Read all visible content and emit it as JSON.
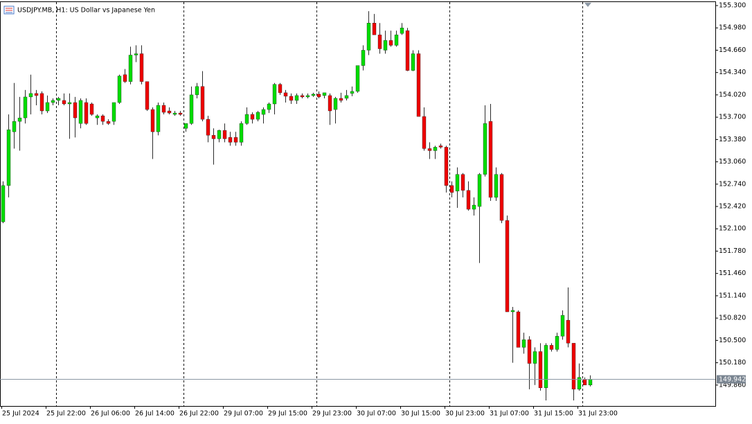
{
  "chart_data": {
    "type": "candlestick",
    "title": "USDJPY.MB, H1:  US Dollar vs Japanese Yen",
    "categories": [
      "25 Jul 2024",
      null,
      null,
      null,
      null,
      null,
      null,
      null,
      "25 Jul 22:00",
      null,
      null,
      null,
      null,
      null,
      null,
      null,
      "26 Jul 06:00",
      null,
      null,
      null,
      null,
      null,
      null,
      null,
      "26 Jul 14:00",
      null,
      null,
      null,
      null,
      null,
      null,
      null,
      "26 Jul 22:00",
      null,
      null,
      null,
      null,
      null,
      null,
      null,
      "29 Jul 07:00",
      null,
      null,
      null,
      null,
      null,
      null,
      null,
      "29 Jul 15:00",
      null,
      null,
      null,
      null,
      null,
      null,
      null,
      "29 Jul 23:00",
      null,
      null,
      null,
      null,
      null,
      null,
      null,
      "30 Jul 07:00",
      null,
      null,
      null,
      null,
      null,
      null,
      null,
      "30 Jul 15:00",
      null,
      null,
      null,
      null,
      null,
      null,
      null,
      "30 Jul 23:00",
      null,
      null,
      null,
      null,
      null,
      null,
      null,
      "31 Jul 07:00",
      null,
      null,
      null,
      null,
      null,
      null,
      null,
      "31 Jul 15:00",
      null,
      null,
      null,
      null,
      null,
      null,
      null,
      "31 Jul 23:00",
      null,
      null
    ],
    "open": [
      152.2,
      152.72,
      153.49,
      153.64,
      153.69,
      153.99,
      154.04,
      154.04,
      153.79,
      153.91,
      153.94,
      153.94,
      153.89,
      153.91,
      153.61,
      153.91,
      153.89,
      153.69,
      153.72,
      153.64,
      153.64,
      153.91,
      154.31,
      154.21,
      154.59,
      154.61,
      154.21,
      153.81,
      153.49,
      153.87,
      153.79,
      153.74,
      153.76,
      153.54,
      153.61,
      154.02,
      154.14,
      153.67,
      153.44,
      153.39,
      153.51,
      153.41,
      153.41,
      153.34,
      153.61,
      153.74,
      153.67,
      153.74,
      153.81,
      153.89,
      154.17,
      154.05,
      154.0,
      153.94,
      154.01,
      153.99,
      154.01,
      154.03,
      154.01,
      154.01,
      153.81,
      153.97,
      153.97,
      154.04,
      154.07,
      154.44,
      154.66,
      155.05,
      154.88,
      154.66,
      154.8,
      154.73,
      154.9,
      154.94,
      154.37,
      154.61,
      153.71,
      153.25,
      153.22,
      153.29,
      153.27,
      152.72,
      152.64,
      152.88,
      152.65,
      152.38,
      152.42,
      152.88,
      153.64,
      152.55,
      152.88,
      152.22,
      150.91,
      150.91,
      150.4,
      150.51,
      150.17,
      150.34,
      149.82,
      150.43,
      150.37,
      150.56,
      150.79,
      150.46,
      149.8,
      149.94,
      149.86
    ],
    "high": [
      152.78,
      153.74,
      154.19,
      153.99,
      154.09,
      154.31,
      154.09,
      154.07,
      154.01,
      153.97,
      153.99,
      154.04,
      154.04,
      153.99,
      153.97,
      153.97,
      153.91,
      153.74,
      153.74,
      153.67,
      153.91,
      154.31,
      154.39,
      154.71,
      154.73,
      154.73,
      154.21,
      153.84,
      153.91,
      153.91,
      153.84,
      153.79,
      153.79,
      153.61,
      154.14,
      154.19,
      154.36,
      153.72,
      153.54,
      153.52,
      153.61,
      153.49,
      153.49,
      153.64,
      153.84,
      153.77,
      153.79,
      153.84,
      153.91,
      154.19,
      154.19,
      154.09,
      154.04,
      154.04,
      154.04,
      154.04,
      154.05,
      154.07,
      154.05,
      154.04,
      153.99,
      154.05,
      154.09,
      154.14,
      154.44,
      154.73,
      155.22,
      155.18,
      155.05,
      154.94,
      154.94,
      154.94,
      155.05,
      154.98,
      154.66,
      154.66,
      153.84,
      153.34,
      153.29,
      153.32,
      153.29,
      152.78,
      152.98,
      152.9,
      152.78,
      152.55,
      152.9,
      153.87,
      153.89,
      152.98,
      152.9,
      152.29,
      150.98,
      150.93,
      150.61,
      150.56,
      150.4,
      150.46,
      150.46,
      150.46,
      150.61,
      150.93,
      151.26,
      150.46,
      150.17,
      149.97,
      150.0
    ],
    "low": [
      152.18,
      152.55,
      153.25,
      153.22,
      153.61,
      153.74,
      153.87,
      153.74,
      153.76,
      153.87,
      153.87,
      153.87,
      153.39,
      153.41,
      153.54,
      153.59,
      153.72,
      153.59,
      153.59,
      153.59,
      153.59,
      153.89,
      154.19,
      154.17,
      154.49,
      154.17,
      153.79,
      153.1,
      153.44,
      153.74,
      153.74,
      153.72,
      153.72,
      153.49,
      153.59,
      153.97,
      153.64,
      153.34,
      153.02,
      153.34,
      153.34,
      153.29,
      153.29,
      153.29,
      153.59,
      153.61,
      153.64,
      153.61,
      153.76,
      153.74,
      154.02,
      153.91,
      153.89,
      153.89,
      153.97,
      153.97,
      153.99,
      153.97,
      153.97,
      153.59,
      153.61,
      153.91,
      153.94,
      154.0,
      154.05,
      154.37,
      154.59,
      154.88,
      154.61,
      154.61,
      154.71,
      154.71,
      154.88,
      154.36,
      154.36,
      153.71,
      153.22,
      153.1,
      153.1,
      153.25,
      152.62,
      152.55,
      152.4,
      152.55,
      152.36,
      152.29,
      151.61,
      152.85,
      152.5,
      152.5,
      152.18,
      150.91,
      150.18,
      150.4,
      150.31,
      149.8,
      149.86,
      149.78,
      149.64,
      150.34,
      150.34,
      150.51,
      150.4,
      149.64,
      149.78,
      149.86,
      149.84
    ],
    "close": [
      152.72,
      153.52,
      153.64,
      153.69,
      153.99,
      154.04,
      154.01,
      153.79,
      153.91,
      153.94,
      153.97,
      153.89,
      153.91,
      153.69,
      153.94,
      153.61,
      153.74,
      153.72,
      153.64,
      153.61,
      153.91,
      154.29,
      154.21,
      154.59,
      154.61,
      154.21,
      153.81,
      153.49,
      153.87,
      153.77,
      153.76,
      153.76,
      153.74,
      153.61,
      154.02,
      154.14,
      153.67,
      153.44,
      153.39,
      153.51,
      153.39,
      153.34,
      153.34,
      153.61,
      153.74,
      153.67,
      153.77,
      153.81,
      153.89,
      154.17,
      154.05,
      154.0,
      153.94,
      154.01,
      153.99,
      154.01,
      154.03,
      153.99,
      154.05,
      153.79,
      153.97,
      153.94,
      154.01,
      154.07,
      154.44,
      154.66,
      155.05,
      154.88,
      154.68,
      154.8,
      154.73,
      154.88,
      154.98,
      154.37,
      154.61,
      153.71,
      153.25,
      153.22,
      153.27,
      153.27,
      152.72,
      152.62,
      152.88,
      152.65,
      152.38,
      152.44,
      152.88,
      153.61,
      152.55,
      152.88,
      152.22,
      150.91,
      150.93,
      150.4,
      150.51,
      150.17,
      150.34,
      149.82,
      150.43,
      150.37,
      150.56,
      150.86,
      150.46,
      149.8,
      149.97,
      149.86,
      149.94
    ],
    "up_color": "#00dd00",
    "down_color": "#ee0000",
    "wick_color": "#2b2b2b",
    "last_price": 149.942,
    "ylim": [
      149.56,
      155.34
    ],
    "yticks": [
      {
        "value": 155.3,
        "label": "155.300"
      },
      {
        "value": 154.98,
        "label": "154.980"
      },
      {
        "value": 154.66,
        "label": "154.660"
      },
      {
        "value": 154.34,
        "label": "154.340"
      },
      {
        "value": 154.02,
        "label": "154.020"
      },
      {
        "value": 153.7,
        "label": "153.700"
      },
      {
        "value": 153.38,
        "label": "153.380"
      },
      {
        "value": 153.06,
        "label": "153.060"
      },
      {
        "value": 152.74,
        "label": "152.740"
      },
      {
        "value": 152.42,
        "label": "152.420"
      },
      {
        "value": 152.1,
        "label": "152.100"
      },
      {
        "value": 151.78,
        "label": "151.780"
      },
      {
        "value": 151.46,
        "label": "151.460"
      },
      {
        "value": 151.14,
        "label": "151.140"
      },
      {
        "value": 150.82,
        "label": "150.820"
      },
      {
        "value": 150.5,
        "label": "150.500"
      },
      {
        "value": 150.18,
        "label": "150.180"
      },
      {
        "value": 149.86,
        "label": "149.860"
      }
    ]
  }
}
